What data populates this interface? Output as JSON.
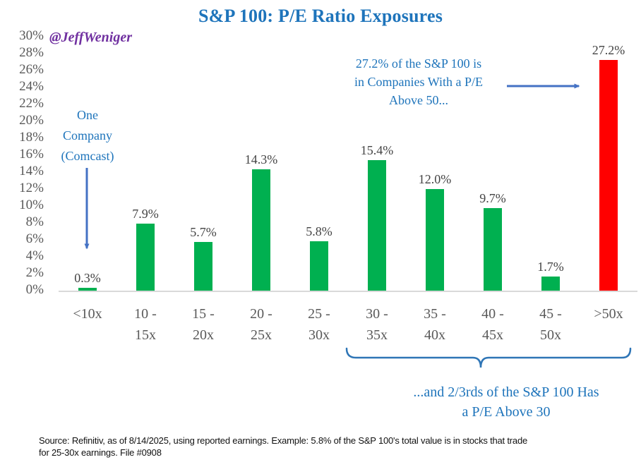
{
  "title": "S&P 100: P/E Ratio Exposures",
  "handle": "@JeffWeniger",
  "chart_data": {
    "type": "bar",
    "categories": [
      "<10x",
      "10 -\n15x",
      "15 -\n20x",
      "20 -\n25x",
      "25 -\n30x",
      "30 -\n35x",
      "35 -\n40x",
      "40 -\n45x",
      "45 -\n50x",
      ">50x"
    ],
    "values": [
      0.3,
      7.9,
      5.7,
      14.3,
      5.8,
      15.4,
      12.0,
      9.7,
      1.7,
      27.2
    ],
    "value_labels": [
      "0.3%",
      "7.9%",
      "5.7%",
      "14.3%",
      "5.8%",
      "15.4%",
      "12.0%",
      "9.7%",
      "1.7%",
      "27.2%"
    ],
    "title": "S&P 100: P/E Ratio Exposures",
    "xlabel": "",
    "ylabel": "",
    "ylim": [
      0,
      30
    ],
    "ytick_step": 2,
    "yticks": [
      "30%",
      "28%",
      "26%",
      "24%",
      "22%",
      "20%",
      "18%",
      "16%",
      "14%",
      "12%",
      "10%",
      "8%",
      "6%",
      "4%",
      "2%",
      "0%"
    ],
    "grid": false,
    "legend": false,
    "bar_default_color": "#00B050",
    "bar_highlight_index": 9,
    "bar_highlight_color": "#FF0000"
  },
  "annotations": {
    "one_company": "One\nCompany\n(Comcast)",
    "above50": "27.2% of the S&P 100 is\nin Companies With a P/E\nAbove 50...",
    "above30": "...and 2/3rds of the S&P 100 Has\na P/E Above 30"
  },
  "source": "Source: Refinitiv, as of 8/14/2025, using reported earnings. Example: 5.8% of the S&P 100's total value is in stocks that trade\nfor 25-30x earnings. File #0908",
  "colors": {
    "green_bar": "#00B050",
    "red_bar": "#FF0000",
    "blue_text": "#1E74BB",
    "arrow_blue": "#4472C4",
    "brace_blue": "#2E75B6",
    "purple_handle": "#7030A0",
    "axis_text_gray": "#595959",
    "axis_line_gray": "#D9D9D9"
  }
}
